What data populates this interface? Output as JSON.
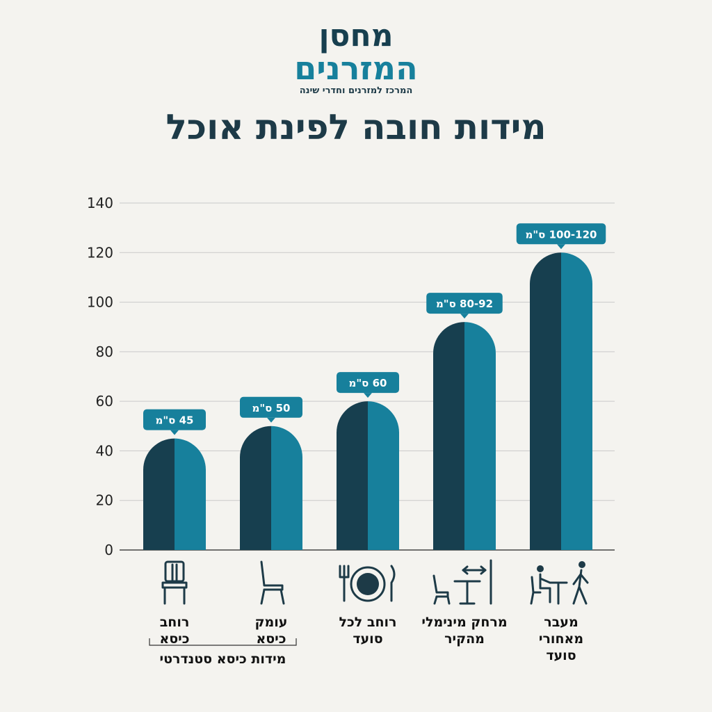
{
  "logo": {
    "line1": "מחסן",
    "line2": "המזרנים",
    "tagline": "המרכז למזרנים וחדרי שינה"
  },
  "title": "מידות חובה לפינת אוכל",
  "colors": {
    "bar_dark": "#173f4f",
    "bar_light": "#17809c",
    "text": "#1d3a47",
    "grid": "#c9c9c9"
  },
  "chart_data": {
    "type": "bar",
    "ylim": [
      0,
      140
    ],
    "yticks": [
      0,
      20,
      40,
      60,
      80,
      100,
      120,
      140
    ],
    "grid": true,
    "categories": [
      {
        "lines": [
          "רוחב",
          "כיסא"
        ],
        "icon": "chair-front-icon"
      },
      {
        "lines": [
          "עומק",
          "כיסא"
        ],
        "icon": "chair-side-icon"
      },
      {
        "lines": [
          "רוחב לכל",
          "סועד"
        ],
        "icon": "place-setting-icon"
      },
      {
        "lines": [
          "מרחק מינימלי",
          "מהקיר"
        ],
        "icon": "table-wall-distance-icon"
      },
      {
        "lines": [
          "מעבר",
          "מאחורי",
          "סועד"
        ],
        "icon": "walkway-behind-diner-icon"
      }
    ],
    "values": [
      45,
      50,
      60,
      92,
      120
    ],
    "data_labels": [
      "45 ס\"מ",
      "50 ס\"מ",
      "60 ס\"מ",
      "80-92 ס\"מ",
      "100-120 ס\"מ"
    ],
    "group_label": "מידות כיסא סטנדרטי",
    "group_members": [
      0,
      1
    ]
  }
}
